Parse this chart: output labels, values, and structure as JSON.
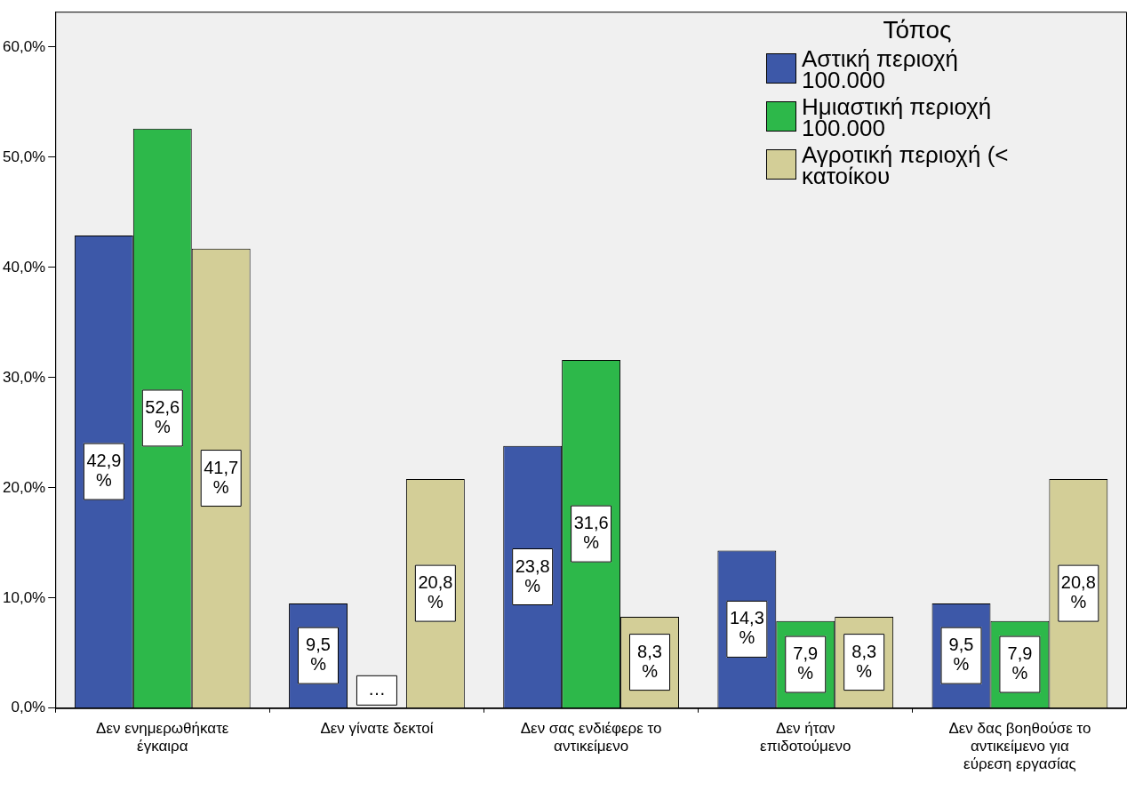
{
  "chart_data": {
    "type": "bar",
    "categories": [
      "Δεν ενημερωθήκατε έγκαιρα",
      "Δεν γίνατε δεκτοί",
      "Δεν σας ενδιέφερε το αντικείμενο",
      "Δεν ήταν επιδοτούμενο",
      "Δεν δας βοηθούσε το αντικείμενο για εύρεση εργασίας"
    ],
    "legend_title": "Τόπος",
    "legend": "top right",
    "series": [
      {
        "name": "Αστική περιοχή 100.000",
        "color": "#3d58a8",
        "values": [
          42.9,
          9.5,
          23.8,
          14.3,
          9.5
        ],
        "value_labels": [
          "42,9%",
          "9,5%",
          "23,8%",
          "14,3%",
          "9,5%"
        ]
      },
      {
        "name": "Ημιαστική περιοχή 100.000",
        "color": "#2db84a",
        "values": [
          52.6,
          0,
          31.6,
          7.9,
          7.9
        ],
        "value_labels": [
          "52,6%",
          "…",
          "31,6%",
          "7,9%",
          "7,9%"
        ]
      },
      {
        "name": "Αγροτική περιοχή (< κατοίκου",
        "color": "#d3ce97",
        "values": [
          41.7,
          20.8,
          8.3,
          8.3,
          20.8
        ],
        "value_labels": [
          "41,7%",
          "20,8%",
          "8,3%",
          "8,3%",
          "20,8%"
        ]
      }
    ],
    "ylim": [
      0,
      63.2
    ],
    "yticks": [
      {
        "value": 0,
        "label": "0,0%"
      },
      {
        "value": 10,
        "label": "10,0%"
      },
      {
        "value": 20,
        "label": "20,0%"
      },
      {
        "value": 30,
        "label": "30,0%"
      },
      {
        "value": 40,
        "label": "40,0%"
      },
      {
        "value": 50,
        "label": "50,0%"
      },
      {
        "value": 60,
        "label": "60,0%"
      }
    ],
    "grid": false
  }
}
